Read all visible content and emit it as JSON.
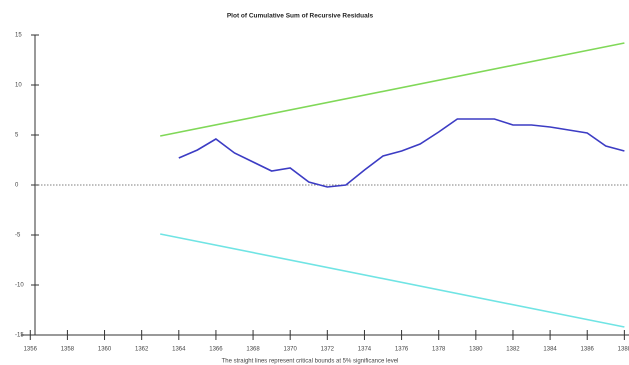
{
  "chart_data": {
    "type": "line",
    "title": "Plot of Cumulative Sum of Recursive Residuals",
    "note": "The straight lines represent critical bounds at 5% significance level",
    "xlim": [
      1355.5,
      1388.25
    ],
    "xticks": [
      1356,
      1358,
      1360,
      1362,
      1364,
      1366,
      1368,
      1370,
      1372,
      1374,
      1376,
      1378,
      1380,
      1382,
      1384,
      1386,
      1388
    ],
    "ylim": [
      -15,
      15
    ],
    "yticks": [
      15,
      10,
      5,
      0,
      -5,
      -10,
      -15
    ],
    "zero_line": true,
    "series": [
      {
        "color": "#80d858",
        "x": [
          1363,
          1388
        ],
        "values": [
          4.9,
          14.2
        ]
      },
      {
        "color": "#3c3cc4",
        "x": [
          1364,
          1365,
          1366,
          1367,
          1368,
          1369,
          1370,
          1371,
          1372,
          1373,
          1374,
          1375,
          1376,
          1377,
          1378,
          1379,
          1380,
          1381,
          1382,
          1383,
          1384,
          1385,
          1386,
          1387,
          1388
        ],
        "values": [
          2.7,
          3.5,
          4.6,
          3.2,
          2.3,
          1.4,
          1.7,
          0.3,
          -0.2,
          0.0,
          1.5,
          2.9,
          3.4,
          4.1,
          5.3,
          6.6,
          6.6,
          6.6,
          6.0,
          6.0,
          5.8,
          5.5,
          5.2,
          3.9,
          3.4
        ]
      },
      {
        "color": "#70e4e4",
        "x": [
          1363,
          1388
        ],
        "values": [
          -4.9,
          -14.2
        ]
      }
    ]
  }
}
